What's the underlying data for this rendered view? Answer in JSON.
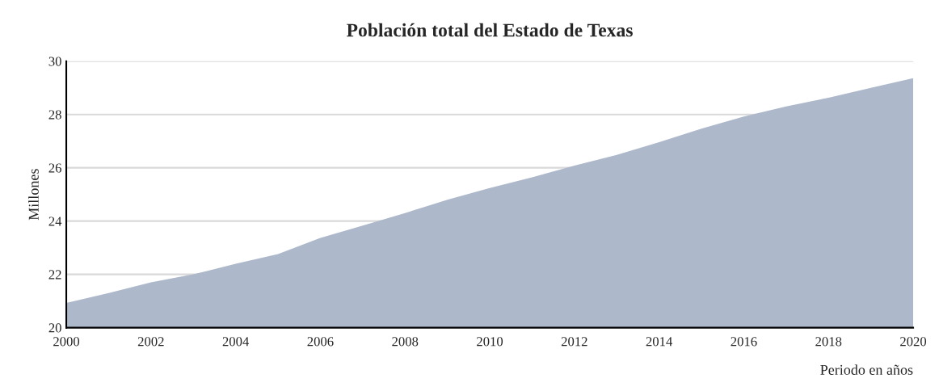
{
  "chart_data": {
    "type": "area",
    "title": "Población total del Estado de Texas",
    "xlabel": "Periodo en años",
    "ylabel": "Millones",
    "x": [
      2000,
      2001,
      2002,
      2003,
      2004,
      2005,
      2006,
      2007,
      2008,
      2009,
      2010,
      2011,
      2012,
      2013,
      2014,
      2015,
      2016,
      2017,
      2018,
      2019,
      2020
    ],
    "series": [
      {
        "color": "#adb8ca",
        "values": [
          20.93,
          21.3,
          21.7,
          22.0,
          22.4,
          22.76,
          23.37,
          23.83,
          24.3,
          24.8,
          25.24,
          25.64,
          26.08,
          26.48,
          26.96,
          27.47,
          27.92,
          28.3,
          28.63,
          29.0,
          29.36
        ]
      }
    ],
    "xlim": [
      2000,
      2020
    ],
    "ylim": [
      20,
      30
    ],
    "xticks": [
      2000,
      2002,
      2004,
      2006,
      2008,
      2010,
      2012,
      2014,
      2016,
      2018,
      2020
    ],
    "yticks": [
      20,
      22,
      24,
      26,
      28,
      30
    ],
    "grid": "y",
    "legend": false
  }
}
